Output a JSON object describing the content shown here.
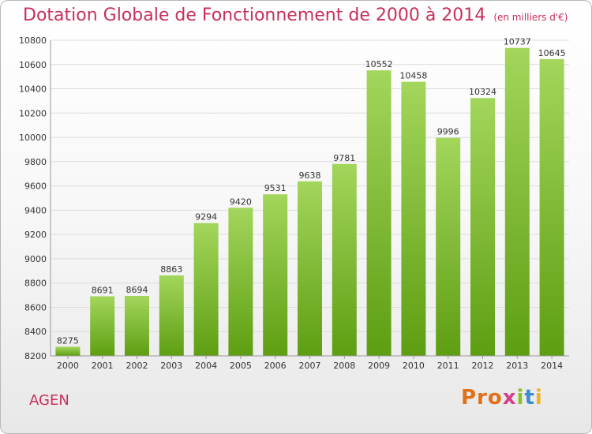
{
  "header": {
    "title": "Dotation Globale de Fonctionnement de 2000 à 2014",
    "subtitle": "(en milliers d'€)"
  },
  "footer": {
    "commune": "AGEN",
    "logo": [
      "Pro",
      "x",
      "i",
      "t",
      "i"
    ]
  },
  "colors": {
    "title": "#c8305a",
    "bar_top": "#a3d65c",
    "bar_bottom": "#5e9e12",
    "grid": "#dcdcdc"
  },
  "chart_data": {
    "type": "bar",
    "title": "Dotation Globale de Fonctionnement de 2000 à 2014",
    "xlabel": "",
    "ylabel": "",
    "categories": [
      "2000",
      "2001",
      "2002",
      "2003",
      "2004",
      "2005",
      "2006",
      "2007",
      "2008",
      "2009",
      "2010",
      "2011",
      "2012",
      "2013",
      "2014"
    ],
    "values": [
      8275,
      8691,
      8694,
      8863,
      9294,
      9420,
      9531,
      9638,
      9781,
      10552,
      10458,
      9996,
      10324,
      10737,
      10645
    ],
    "ylim": [
      8200,
      10800
    ],
    "yticks": [
      8200,
      8400,
      8600,
      8800,
      9000,
      9200,
      9400,
      9600,
      9800,
      10000,
      10200,
      10400,
      10600,
      10800
    ],
    "grid": true
  }
}
